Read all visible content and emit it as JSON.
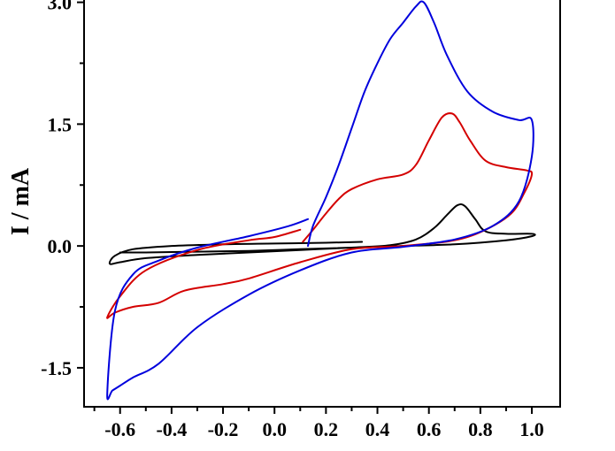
{
  "chart_data": {
    "type": "line",
    "title": "",
    "xlabel": "",
    "ylabel": "I / mA",
    "xlim": [
      -0.74,
      1.11
    ],
    "ylim": [
      -1.98,
      3.05
    ],
    "x_ticks": [
      "-0.6",
      "-0.4",
      "-0.2",
      "0.0",
      "0.2",
      "0.4",
      "0.6",
      "0.8",
      "1.0"
    ],
    "y_ticks": [
      "-1.5",
      "0.0",
      "1.5",
      "3.0"
    ],
    "grid": false,
    "legend": "none",
    "series": [
      {
        "color": "#000000",
        "x": [
          0.34,
          0.2,
          0.0,
          -0.2,
          -0.4,
          -0.55,
          -0.62,
          -0.64,
          -0.6,
          -0.5,
          -0.3,
          -0.1,
          0.1,
          0.3,
          0.45,
          0.55,
          0.62,
          0.67,
          0.71,
          0.74,
          0.78,
          0.82,
          0.9,
          1.0,
          1.0,
          0.9,
          0.7,
          0.5,
          0.3,
          0.1,
          -0.1,
          -0.3,
          -0.5,
          -0.6
        ],
        "y": [
          0.05,
          0.04,
          0.03,
          0.02,
          0.0,
          -0.04,
          -0.12,
          -0.22,
          -0.2,
          -0.15,
          -0.11,
          -0.08,
          -0.05,
          -0.02,
          0.01,
          0.08,
          0.22,
          0.38,
          0.5,
          0.49,
          0.33,
          0.18,
          0.15,
          0.15,
          0.12,
          0.07,
          0.02,
          0.0,
          -0.02,
          -0.04,
          -0.06,
          -0.07,
          -0.08,
          -0.08
        ]
      },
      {
        "color": "#d40000",
        "x": [
          0.11,
          0.15,
          0.2,
          0.25,
          0.3,
          0.4,
          0.5,
          0.55,
          0.6,
          0.65,
          0.69,
          0.72,
          0.76,
          0.82,
          0.9,
          0.98,
          1.0,
          0.97,
          0.92,
          0.82,
          0.7,
          0.5,
          0.3,
          0.1,
          -0.1,
          -0.2,
          -0.35,
          -0.45,
          -0.55,
          -0.62,
          -0.65,
          -0.6,
          -0.5,
          -0.3,
          -0.1,
          0.0,
          0.1
        ],
        "y": [
          0.05,
          0.2,
          0.4,
          0.58,
          0.7,
          0.82,
          0.88,
          1.0,
          1.3,
          1.58,
          1.63,
          1.52,
          1.3,
          1.05,
          0.97,
          0.93,
          0.88,
          0.65,
          0.4,
          0.2,
          0.07,
          0.0,
          -0.04,
          -0.2,
          -0.4,
          -0.47,
          -0.55,
          -0.7,
          -0.75,
          -0.82,
          -0.88,
          -0.62,
          -0.3,
          -0.05,
          0.07,
          0.11,
          0.2
        ]
      },
      {
        "color": "#0000dd",
        "x": [
          0.13,
          0.15,
          0.2,
          0.25,
          0.3,
          0.35,
          0.4,
          0.45,
          0.5,
          0.55,
          0.58,
          0.62,
          0.67,
          0.75,
          0.85,
          0.95,
          1.0,
          1.0,
          0.95,
          0.85,
          0.7,
          0.5,
          0.3,
          0.1,
          -0.1,
          -0.3,
          -0.45,
          -0.55,
          -0.6,
          -0.63,
          -0.65,
          -0.62,
          -0.55,
          -0.45,
          -0.3,
          -0.1,
          0.05,
          0.13
        ],
        "y": [
          0.0,
          0.25,
          0.6,
          1.0,
          1.45,
          1.9,
          2.25,
          2.55,
          2.75,
          2.95,
          3.0,
          2.75,
          2.35,
          1.9,
          1.65,
          1.55,
          1.55,
          1.1,
          0.55,
          0.25,
          0.08,
          -0.01,
          -0.08,
          -0.3,
          -0.6,
          -1.0,
          -1.45,
          -1.62,
          -1.72,
          -1.78,
          -1.82,
          -0.8,
          -0.35,
          -0.18,
          -0.02,
          0.12,
          0.24,
          0.33
        ]
      }
    ]
  }
}
